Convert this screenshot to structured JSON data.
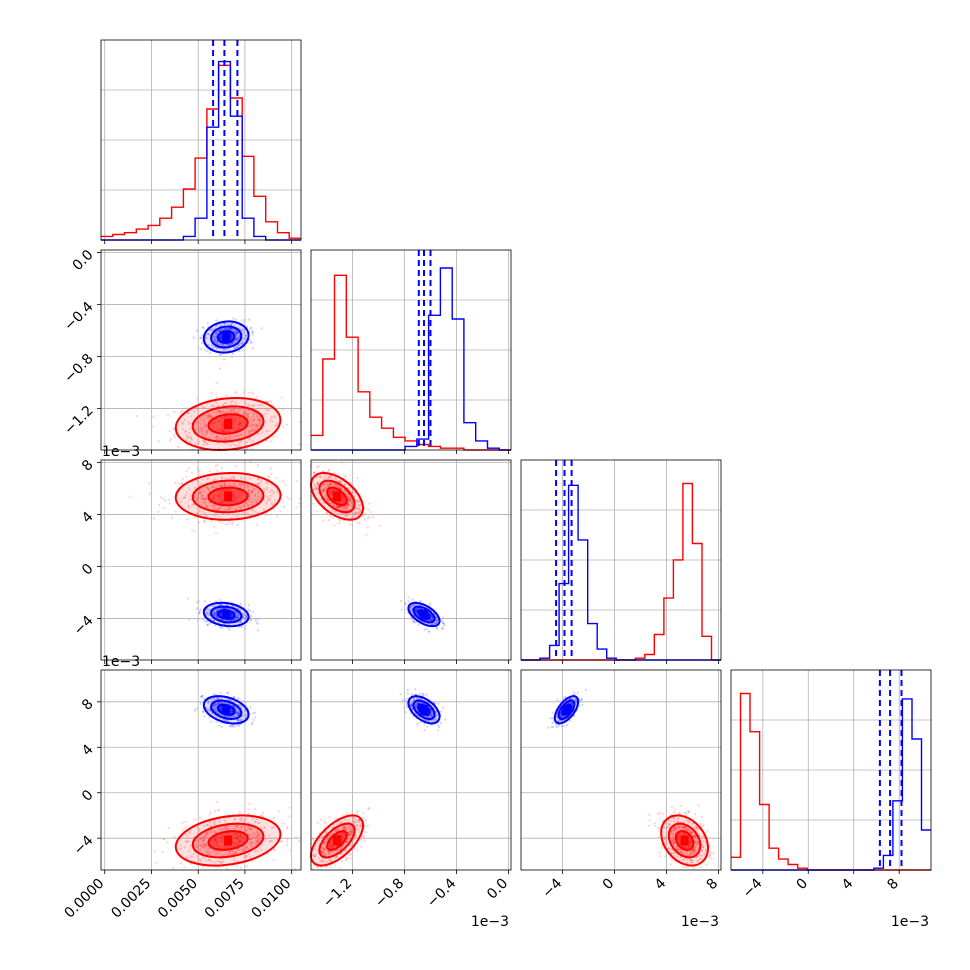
{
  "chart_data": {
    "type": "scatter",
    "subtype": "corner-plot",
    "grid": true,
    "colors": {
      "series_a": "#ff0000",
      "series_b": "#0000ff"
    },
    "params": [
      {
        "range": [
          -0.0002,
          0.0105
        ],
        "ticks": [
          "0.0000",
          "0.0025",
          "0.0050",
          "0.0075",
          "0.0100"
        ],
        "tick_values": [
          0,
          0.0025,
          0.005,
          0.0075,
          0.01
        ],
        "offset_label": ""
      },
      {
        "range": [
          -1.52,
          0.02
        ],
        "ticks": [
          "−1.2",
          "−0.8",
          "−0.4",
          "0.0"
        ],
        "tick_values": [
          -1.2,
          -0.8,
          -0.4,
          0.0
        ],
        "offset_label": "1e−3"
      },
      {
        "range": [
          -7.2,
          8.2
        ],
        "ticks": [
          "−4",
          "0",
          "4",
          "8"
        ],
        "tick_values": [
          -4,
          0,
          4,
          8
        ],
        "offset_label": "1e−3"
      },
      {
        "range": [
          -6.8,
          10.8
        ],
        "ticks": [
          "−4",
          "0",
          "4",
          "8"
        ],
        "tick_values": [
          -4,
          0,
          4,
          8
        ],
        "offset_label": "1e−3"
      }
    ],
    "series": [
      {
        "color": "#ff0000",
        "means": [
          0.0066,
          -1.32,
          5.4,
          -4.2
        ],
        "std": [
          0.0014,
          0.1,
          0.9,
          1.1
        ],
        "hists": [
          [
            2,
            3,
            4,
            6,
            8,
            12,
            18,
            28,
            45,
            72,
            96,
            78,
            46,
            24,
            10,
            4,
            1
          ],
          [
            8,
            50,
            96,
            62,
            32,
            18,
            12,
            7,
            5,
            3,
            2,
            1,
            1,
            0,
            0,
            0,
            0
          ],
          [
            0,
            0,
            0,
            0,
            0,
            0,
            0,
            0,
            0,
            0,
            0,
            0,
            1,
            3,
            14,
            34,
            55,
            97,
            64,
            13,
            0
          ],
          [
            7,
            97,
            76,
            36,
            12,
            6,
            3,
            1,
            0,
            0,
            0,
            0,
            0,
            0,
            0,
            0,
            0,
            0,
            0,
            0,
            0
          ]
        ]
      },
      {
        "color": "#0000ff",
        "means": [
          0.0065,
          -0.65,
          -3.7,
          7.3
        ],
        "std": [
          0.0006,
          0.06,
          0.45,
          0.6
        ],
        "quantiles": [
          [
            0.0058,
            0.0064,
            0.0071
          ],
          [
            -0.69,
            -0.65,
            -0.6
          ],
          [
            -4.5,
            -3.85,
            -3.3
          ],
          [
            6.3,
            7.2,
            8.2
          ]
        ],
        "hists": [
          [
            0,
            0,
            0,
            0,
            0,
            0,
            0,
            2,
            12,
            62,
            98,
            68,
            12,
            2,
            0,
            0,
            0
          ],
          [
            0,
            0,
            0,
            0,
            0,
            0,
            0,
            0,
            2,
            6,
            74,
            100,
            72,
            15,
            5,
            1,
            0
          ],
          [
            0,
            0,
            1,
            8,
            42,
            96,
            66,
            20,
            6,
            1,
            0,
            0,
            0,
            0,
            0,
            0,
            0,
            0,
            0,
            0,
            0
          ],
          [
            0,
            0,
            0,
            0,
            0,
            0,
            0,
            0,
            0,
            0,
            0,
            0,
            0,
            0,
            0,
            1,
            8,
            38,
            94,
            72,
            22
          ]
        ]
      }
    ],
    "correlations": {
      "1-0": [
        0.15,
        0.1
      ],
      "2-0": [
        0.05,
        -0.2
      ],
      "2-1": [
        -0.5,
        -0.55
      ],
      "3-0": [
        0.25,
        -0.35
      ],
      "3-1": [
        0.6,
        -0.5
      ],
      "3-2": [
        -0.3,
        0.6
      ]
    }
  }
}
